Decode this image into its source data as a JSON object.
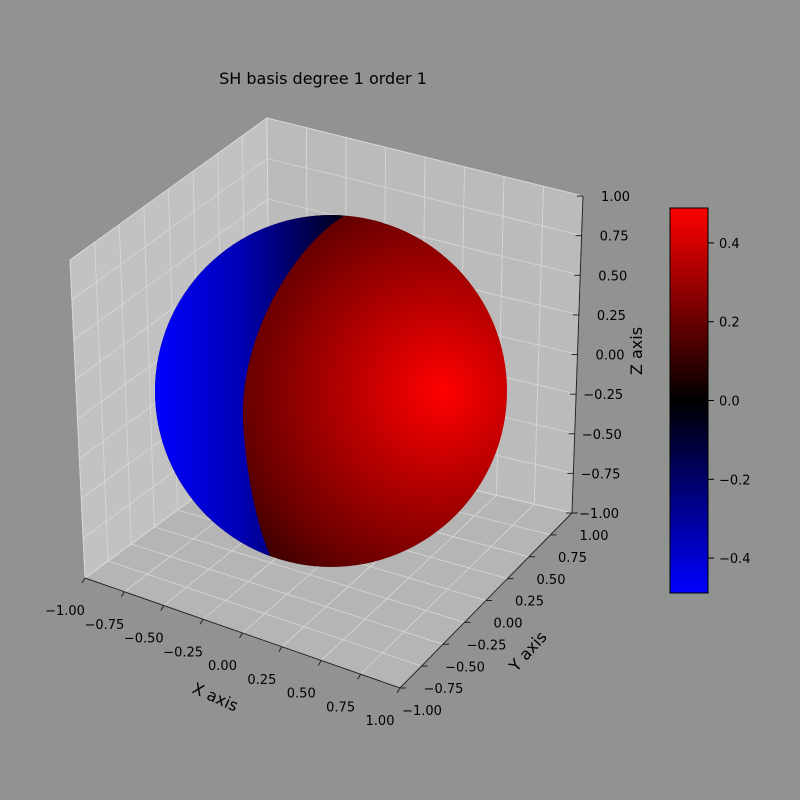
{
  "chart_data": {
    "type": "surface3d",
    "title": "SH basis degree 1 order 1",
    "xlabel": "X axis",
    "ylabel": "Y axis",
    "zlabel": "Z axis",
    "xlim": [
      -1.0,
      1.0
    ],
    "ylim": [
      -1.0,
      1.0
    ],
    "zlim": [
      -1.0,
      1.0
    ],
    "xticks": [
      "−1.00",
      "−0.75",
      "−0.50",
      "−0.25",
      "0.00",
      "0.25",
      "0.50",
      "0.75",
      "1.00"
    ],
    "yticks": [
      "−1.00",
      "−0.75",
      "−0.50",
      "−0.25",
      "0.00",
      "0.25",
      "0.50",
      "0.75",
      "1.00"
    ],
    "zticks": [
      "−1.00",
      "−0.75",
      "−0.50",
      "−0.25",
      "0.00",
      "0.25",
      "0.50",
      "0.75",
      "1.00"
    ],
    "surface": "unit sphere colored by spherical harmonic value",
    "grid": true,
    "colorbar": {
      "ticks": [
        "−0.4",
        "−0.2",
        "0.0",
        "0.2",
        "0.4"
      ],
      "tick_values": [
        -0.4,
        -0.2,
        0.0,
        0.2,
        0.4
      ],
      "range": [
        -0.4886,
        0.4886
      ],
      "colors": [
        "#0000ff",
        "#000000",
        "#ff0000"
      ]
    }
  },
  "colors": {
    "figure_background": "#919390",
    "pane_color": "#bcbdbb",
    "grid_color": "#d6d6d6"
  }
}
